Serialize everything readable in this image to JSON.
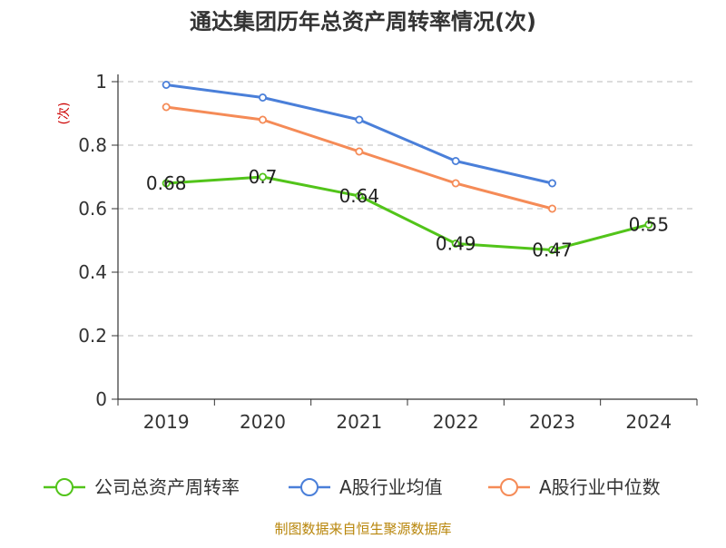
{
  "chart_data": {
    "type": "line",
    "title": "通达集团历年总资产周转率情况(次)",
    "ylabel": "(次)",
    "xlabel": "",
    "categories": [
      "2019",
      "2020",
      "2021",
      "2022",
      "2023",
      "2024"
    ],
    "ylim": [
      0,
      1
    ],
    "yticks": [
      0,
      0.2,
      0.4,
      0.6,
      0.8,
      1
    ],
    "ytick_labels": [
      "0",
      "0.2",
      "0.4",
      "0.6",
      "0.8",
      "1"
    ],
    "grid": true,
    "legend_position": "bottom",
    "series": [
      {
        "name": "公司总资产周转率",
        "color": "#52c41a",
        "values": [
          0.68,
          0.7,
          0.64,
          0.49,
          0.47,
          0.55
        ],
        "labels": [
          "0.68",
          "0.7",
          "0.64",
          "0.49",
          "0.47",
          "0.55"
        ]
      },
      {
        "name": "A股行业均值",
        "color": "#4a7fd9",
        "values": [
          0.99,
          0.95,
          0.88,
          0.75,
          0.68,
          null
        ]
      },
      {
        "name": "A股行业中位数",
        "color": "#f58b57",
        "values": [
          0.92,
          0.88,
          0.78,
          0.68,
          0.6,
          null
        ]
      }
    ]
  },
  "source_text": "制图数据来自恒生聚源数据库"
}
